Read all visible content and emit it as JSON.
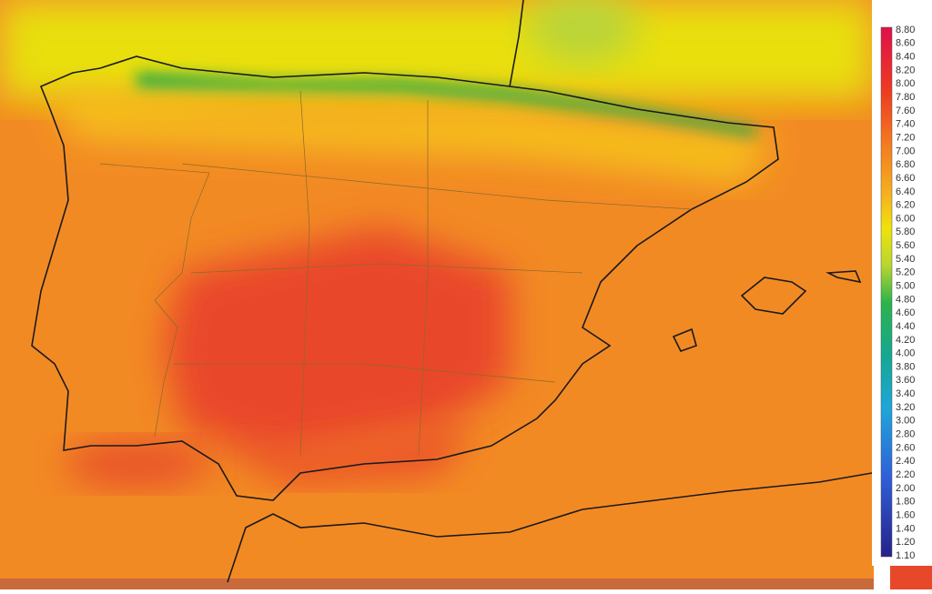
{
  "legend": {
    "labels": [
      "8.80",
      "8.60",
      "8.40",
      "8.20",
      "8.00",
      "7.80",
      "7.60",
      "7.40",
      "7.20",
      "7.00",
      "6.80",
      "6.60",
      "6.40",
      "6.20",
      "6.00",
      "5.80",
      "5.60",
      "5.40",
      "5.20",
      "5.00",
      "4.80",
      "4.60",
      "4.40",
      "4.20",
      "4.00",
      "3.80",
      "3.60",
      "3.40",
      "3.20",
      "3.00",
      "2.80",
      "2.60",
      "2.40",
      "2.20",
      "2.00",
      "1.80",
      "1.60",
      "1.40",
      "1.20",
      "1.10"
    ]
  }
}
